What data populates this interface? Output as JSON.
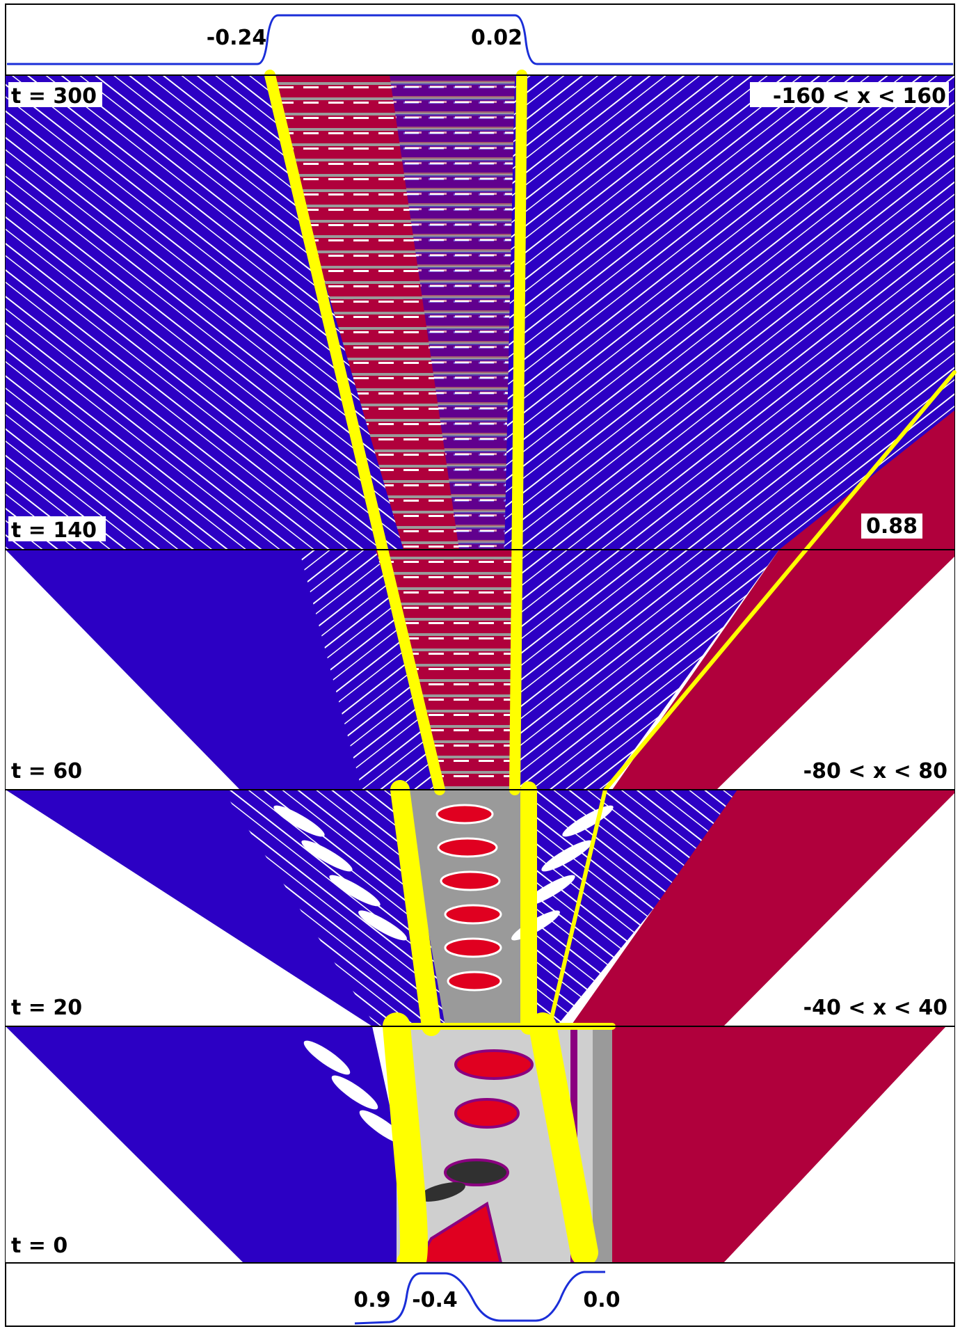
{
  "top_profile": {
    "left_value": "-0.24",
    "right_value": "0.02"
  },
  "bottom_profile": {
    "left_value": "0.9",
    "middle_value": "-0.4",
    "right_value": "0.0"
  },
  "time_labels": [
    "t = 300",
    "t = 140",
    "t = 60",
    "t = 20",
    "t = 0"
  ],
  "range_labels": [
    "-160 < x < 160",
    "-80 < x < 80",
    "-40 < x < 40"
  ],
  "annotation": "0.88",
  "colors": {
    "blue": "#2c00c4",
    "crimson": "#b0003c",
    "yellow": "#ffff00",
    "red": "#e00020",
    "gray": "#9a9a9a",
    "lightgray": "#cfcfcf",
    "purple": "#8a0080",
    "dark": "#303030",
    "curve": "#1a2ed8"
  }
}
